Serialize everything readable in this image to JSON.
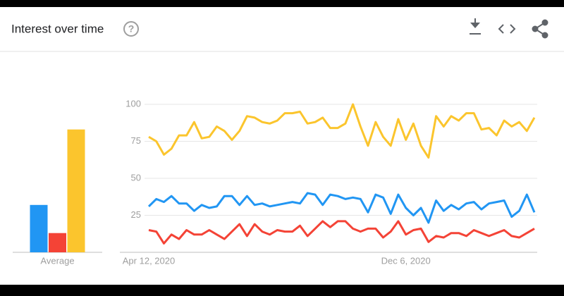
{
  "header": {
    "title": "Interest over time"
  },
  "chart_data": [
    {
      "type": "bar",
      "categories": [
        "Average"
      ],
      "ylim": [
        0,
        100
      ],
      "series": [
        {
          "color": "#2196f3",
          "values": [
            32
          ]
        },
        {
          "color": "#f44336",
          "values": [
            13
          ]
        },
        {
          "color": "#fbc52d",
          "values": [
            83
          ]
        }
      ]
    },
    {
      "type": "line",
      "ylim": [
        0,
        100
      ],
      "yticks": [
        25,
        50,
        75,
        100
      ],
      "grid": true,
      "categories": [
        "Apr 12, 2020",
        null,
        null,
        null,
        null,
        null,
        null,
        null,
        null,
        null,
        null,
        null,
        null,
        null,
        null,
        null,
        null,
        null,
        null,
        null,
        null,
        null,
        null,
        null,
        null,
        null,
        null,
        null,
        null,
        null,
        null,
        null,
        null,
        null,
        "Dec 6, 2020",
        null,
        null,
        null,
        null,
        null,
        null,
        null,
        null,
        null,
        null,
        null,
        null,
        null,
        null,
        null,
        null,
        null
      ],
      "series": [
        {
          "color": "#fbc52d",
          "values": [
            78,
            75,
            66,
            70,
            79,
            79,
            88,
            77,
            78,
            85,
            82,
            76,
            82,
            92,
            91,
            88,
            87,
            89,
            94,
            94,
            95,
            87,
            88,
            91,
            84,
            84,
            87,
            100,
            85,
            72,
            88,
            78,
            72,
            90,
            76,
            87,
            72,
            64,
            92,
            85,
            92,
            89,
            94,
            94,
            83,
            84,
            79,
            89,
            85,
            88,
            82,
            91
          ]
        },
        {
          "color": "#2196f3",
          "values": [
            31,
            36,
            34,
            38,
            33,
            33,
            28,
            32,
            30,
            31,
            38,
            38,
            32,
            38,
            32,
            33,
            31,
            32,
            33,
            34,
            33,
            40,
            39,
            32,
            39,
            38,
            36,
            37,
            36,
            27,
            39,
            37,
            26,
            39,
            30,
            25,
            30,
            20,
            35,
            28,
            32,
            29,
            33,
            34,
            29,
            33,
            34,
            35,
            24,
            28,
            39,
            27
          ]
        },
        {
          "color": "#f44336",
          "values": [
            15,
            14,
            6,
            12,
            9,
            15,
            12,
            12,
            15,
            12,
            9,
            14,
            19,
            11,
            19,
            14,
            12,
            15,
            14,
            14,
            18,
            11,
            16,
            21,
            17,
            21,
            21,
            16,
            14,
            16,
            16,
            10,
            14,
            21,
            12,
            15,
            16,
            7,
            11,
            10,
            13,
            13,
            11,
            15,
            13,
            11,
            13,
            15,
            11,
            10,
            13,
            16
          ]
        }
      ]
    }
  ]
}
